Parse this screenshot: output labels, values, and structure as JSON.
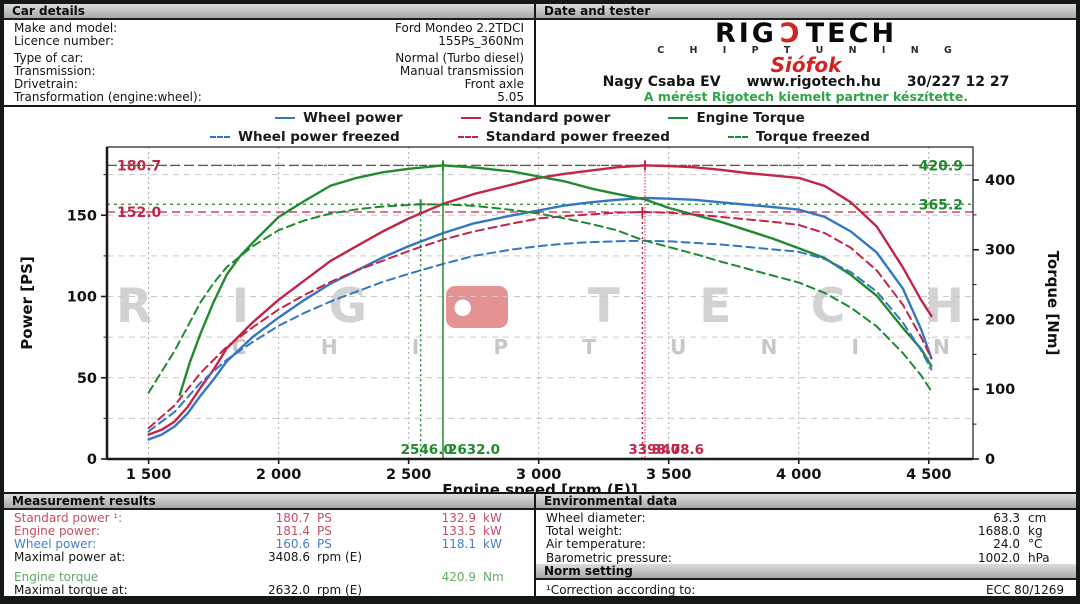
{
  "car_details": {
    "title": "Car details",
    "rows": [
      {
        "label": "Make and model:",
        "value": "Ford Mondeo 2.2TDCI"
      },
      {
        "label": "Licence number:",
        "value": "155Ps_360Nm"
      },
      {
        "label": "Type of car:",
        "value": "Normal (Turbo diesel)"
      },
      {
        "label": "Transmission:",
        "value": "Manual transmission"
      },
      {
        "label": "Drivetrain:",
        "value": "Front axle"
      },
      {
        "label": "Transformation (engine:wheel):",
        "value": "5.05"
      }
    ]
  },
  "date_tester": {
    "title": "Date and tester",
    "logo_pre": "RIG",
    "logo_glyph": "Ɔ",
    "logo_post": "TECH",
    "logo_sub": "C H I P T U N I N G",
    "city": "Siófok",
    "tester": "Nagy Csaba EV",
    "website": "www.rigotech.hu",
    "phone": "30/227 12 27",
    "note": "A mérést Rigotech kiemelt partner készítette."
  },
  "chart_data": {
    "type": "line",
    "xlabel": "Engine speed [rpm (E)]",
    "ylabel_left": "Power [PS]",
    "ylabel_right": "Torque [Nm]",
    "xlim": [
      1340,
      4670
    ],
    "ylim_power": [
      0,
      192
    ],
    "ylim_torque": [
      0,
      447.3
    ],
    "grid": true,
    "power_grid_step": 25,
    "x_ticks": [
      {
        "v": 1500,
        "label": "1 500"
      },
      {
        "v": 2000,
        "label": "2 000"
      },
      {
        "v": 2500,
        "label": "2 500"
      },
      {
        "v": 3000,
        "label": "3 000"
      },
      {
        "v": 3500,
        "label": "3 500"
      },
      {
        "v": 4000,
        "label": "4 000"
      },
      {
        "v": 4500,
        "label": "4 500"
      }
    ],
    "y_ticks_left": [
      0,
      50,
      100,
      150
    ],
    "y_minor_left_step": 25,
    "y_ticks_right": [
      0,
      100,
      200,
      300,
      400
    ],
    "y_minor_right_step": 50,
    "legend": [
      {
        "label": "Wheel power",
        "color": "#3377c2",
        "dashed": false
      },
      {
        "label": "Standard power",
        "color": "#c22547",
        "dashed": false
      },
      {
        "label": "Engine Torque",
        "color": "#1f8a2f",
        "dashed": false
      },
      {
        "label": "Wheel power freezed",
        "color": "#3377c2",
        "dashed": true
      },
      {
        "label": "Standard power freezed",
        "color": "#c22547",
        "dashed": true
      },
      {
        "label": "Torque freezed",
        "color": "#1f8a2f",
        "dashed": true
      }
    ],
    "series": [
      {
        "name": "Standard power",
        "axis": "power",
        "color": "#c22547",
        "dashed": false,
        "points": [
          [
            1500,
            15
          ],
          [
            1550,
            18
          ],
          [
            1600,
            23
          ],
          [
            1650,
            32
          ],
          [
            1700,
            44
          ],
          [
            1750,
            55
          ],
          [
            1800,
            68
          ],
          [
            1900,
            84
          ],
          [
            2000,
            98
          ],
          [
            2100,
            110
          ],
          [
            2200,
            122
          ],
          [
            2300,
            131
          ],
          [
            2400,
            140
          ],
          [
            2500,
            148
          ],
          [
            2632,
            157
          ],
          [
            2750,
            163
          ],
          [
            2900,
            169
          ],
          [
            3000,
            173
          ],
          [
            3100,
            175.5
          ],
          [
            3200,
            177.5
          ],
          [
            3300,
            179.5
          ],
          [
            3409,
            180.7
          ],
          [
            3500,
            180.3
          ],
          [
            3600,
            179.5
          ],
          [
            3700,
            178
          ],
          [
            3800,
            176
          ],
          [
            3900,
            174.5
          ],
          [
            4000,
            173
          ],
          [
            4100,
            168
          ],
          [
            4200,
            158
          ],
          [
            4300,
            143
          ],
          [
            4400,
            118
          ],
          [
            4470,
            98
          ],
          [
            4510,
            88
          ]
        ]
      },
      {
        "name": "Wheel power",
        "axis": "power",
        "color": "#3377c2",
        "dashed": false,
        "points": [
          [
            1500,
            12
          ],
          [
            1550,
            15
          ],
          [
            1600,
            20
          ],
          [
            1650,
            28
          ],
          [
            1700,
            39
          ],
          [
            1750,
            49
          ],
          [
            1800,
            60
          ],
          [
            1900,
            75
          ],
          [
            2000,
            87
          ],
          [
            2100,
            98
          ],
          [
            2200,
            108
          ],
          [
            2300,
            116
          ],
          [
            2400,
            124
          ],
          [
            2500,
            131
          ],
          [
            2632,
            139
          ],
          [
            2750,
            145
          ],
          [
            2900,
            150
          ],
          [
            3000,
            153
          ],
          [
            3100,
            156
          ],
          [
            3200,
            158
          ],
          [
            3300,
            159.5
          ],
          [
            3409,
            160.6
          ],
          [
            3500,
            160.2
          ],
          [
            3600,
            159.5
          ],
          [
            3700,
            158
          ],
          [
            3800,
            156.5
          ],
          [
            3900,
            155
          ],
          [
            4000,
            153.5
          ],
          [
            4100,
            149
          ],
          [
            4200,
            140
          ],
          [
            4300,
            127
          ],
          [
            4400,
            105
          ],
          [
            4470,
            80
          ],
          [
            4510,
            62
          ]
        ]
      },
      {
        "name": "Engine Torque",
        "axis": "torque",
        "color": "#1f8a2f",
        "dashed": false,
        "points": [
          [
            1620,
            92
          ],
          [
            1660,
            140
          ],
          [
            1700,
            180
          ],
          [
            1750,
            225
          ],
          [
            1800,
            264
          ],
          [
            1850,
            290
          ],
          [
            1900,
            310
          ],
          [
            2000,
            347
          ],
          [
            2100,
            370
          ],
          [
            2200,
            392
          ],
          [
            2300,
            403
          ],
          [
            2400,
            411
          ],
          [
            2500,
            416
          ],
          [
            2632,
            420.9
          ],
          [
            2750,
            418
          ],
          [
            2900,
            412
          ],
          [
            3000,
            405
          ],
          [
            3100,
            398
          ],
          [
            3200,
            388
          ],
          [
            3300,
            380
          ],
          [
            3409,
            372
          ],
          [
            3500,
            360
          ],
          [
            3600,
            350
          ],
          [
            3700,
            340
          ],
          [
            3800,
            328
          ],
          [
            3900,
            316
          ],
          [
            4000,
            302
          ],
          [
            4100,
            288
          ],
          [
            4200,
            264
          ],
          [
            4300,
            234
          ],
          [
            4400,
            188
          ],
          [
            4470,
            158
          ],
          [
            4510,
            133
          ]
        ]
      },
      {
        "name": "Standard power freezed",
        "axis": "power",
        "color": "#c22547",
        "dashed": true,
        "points": [
          [
            1500,
            19
          ],
          [
            1600,
            33
          ],
          [
            1700,
            53
          ],
          [
            1800,
            69
          ],
          [
            1900,
            81
          ],
          [
            2000,
            92
          ],
          [
            2100,
            101
          ],
          [
            2200,
            109
          ],
          [
            2300,
            116
          ],
          [
            2400,
            122
          ],
          [
            2500,
            128
          ],
          [
            2632,
            135
          ],
          [
            2750,
            140
          ],
          [
            2900,
            145
          ],
          [
            3000,
            148
          ],
          [
            3100,
            149.5
          ],
          [
            3200,
            150.5
          ],
          [
            3300,
            151.5
          ],
          [
            3399,
            152
          ],
          [
            3500,
            151.5
          ],
          [
            3600,
            150.5
          ],
          [
            3700,
            149
          ],
          [
            3800,
            147.5
          ],
          [
            3900,
            146
          ],
          [
            4000,
            144
          ],
          [
            4100,
            139
          ],
          [
            4200,
            130
          ],
          [
            4300,
            116
          ],
          [
            4400,
            95
          ],
          [
            4470,
            75
          ],
          [
            4510,
            62
          ]
        ]
      },
      {
        "name": "Wheel power freezed",
        "axis": "power",
        "color": "#3377c2",
        "dashed": true,
        "points": [
          [
            1500,
            17
          ],
          [
            1600,
            29
          ],
          [
            1700,
            47
          ],
          [
            1800,
            61
          ],
          [
            1900,
            72
          ],
          [
            2000,
            82
          ],
          [
            2100,
            90
          ],
          [
            2200,
            97
          ],
          [
            2300,
            103
          ],
          [
            2400,
            109
          ],
          [
            2500,
            114
          ],
          [
            2632,
            120
          ],
          [
            2750,
            125
          ],
          [
            2900,
            129
          ],
          [
            3000,
            131
          ],
          [
            3100,
            132.5
          ],
          [
            3200,
            133.5
          ],
          [
            3300,
            134
          ],
          [
            3400,
            134.3
          ],
          [
            3500,
            134
          ],
          [
            3600,
            133
          ],
          [
            3700,
            132
          ],
          [
            3800,
            130.5
          ],
          [
            3900,
            129
          ],
          [
            4000,
            127.5
          ],
          [
            4100,
            123
          ],
          [
            4200,
            115
          ],
          [
            4300,
            103
          ],
          [
            4400,
            84
          ],
          [
            4470,
            67
          ],
          [
            4510,
            55
          ]
        ]
      },
      {
        "name": "Torque freezed",
        "axis": "torque",
        "color": "#1f8a2f",
        "dashed": true,
        "points": [
          [
            1500,
            95
          ],
          [
            1550,
            125
          ],
          [
            1600,
            155
          ],
          [
            1650,
            190
          ],
          [
            1700,
            225
          ],
          [
            1750,
            252
          ],
          [
            1800,
            275
          ],
          [
            1900,
            305
          ],
          [
            2000,
            328
          ],
          [
            2100,
            342
          ],
          [
            2200,
            352
          ],
          [
            2300,
            358
          ],
          [
            2400,
            362
          ],
          [
            2546,
            365.2
          ],
          [
            2632,
            365
          ],
          [
            2750,
            363
          ],
          [
            2900,
            357
          ],
          [
            3000,
            352
          ],
          [
            3100,
            345
          ],
          [
            3200,
            337
          ],
          [
            3300,
            328
          ],
          [
            3399,
            314
          ],
          [
            3500,
            304
          ],
          [
            3600,
            294
          ],
          [
            3700,
            283
          ],
          [
            3800,
            273
          ],
          [
            3900,
            263
          ],
          [
            4000,
            253
          ],
          [
            4100,
            238
          ],
          [
            4200,
            217
          ],
          [
            4300,
            190
          ],
          [
            4400,
            152
          ],
          [
            4470,
            120
          ],
          [
            4510,
            97
          ]
        ]
      }
    ],
    "annotations": {
      "hlines": [
        {
          "axis": "power",
          "value": 180.7,
          "label": "180.7",
          "color": "#c22547",
          "side": "left",
          "dash": "8 5"
        },
        {
          "axis": "power",
          "value": 152.0,
          "label": "152.0",
          "color": "#c22547",
          "side": "left",
          "dash": "8 5"
        },
        {
          "axis": "torque",
          "value": 420.9,
          "label": "420.9",
          "color": "#1f8a2f",
          "side": "right",
          "dash": "3 4"
        },
        {
          "axis": "torque",
          "value": 365.2,
          "label": "365.2",
          "color": "#1f8a2f",
          "side": "right",
          "dash": "3 4"
        }
      ],
      "vlines": [
        {
          "rpm": 2546.0,
          "label": "2546.0",
          "color": "#1f8a2f",
          "dash": "2 3",
          "top_axis": "torque",
          "top_value": 365.2,
          "label_dx": -20
        },
        {
          "rpm": 2632.0,
          "label": "2632.0",
          "color": "#1f8a2f",
          "dash": "",
          "top_axis": "torque",
          "top_value": 420.9,
          "label_dx": 5
        },
        {
          "rpm": 3398.7,
          "label": "3398.7",
          "color": "#c22547",
          "dash": "2 3",
          "top_axis": "power",
          "top_value": 152.0,
          "label_dx": -14
        },
        {
          "rpm": 3408.6,
          "label": "3408.6",
          "color": "#c22547",
          "dash": "1 2",
          "top_axis": "power",
          "top_value": 180.7,
          "label_dx": 7
        }
      ]
    },
    "watermark": {
      "main_pre": [
        "R",
        "I",
        "G"
      ],
      "main_post": [
        "T",
        "E",
        "C",
        "H"
      ],
      "sub": [
        "C",
        "H",
        "I",
        "P",
        "T",
        "U",
        "N",
        "I",
        "N"
      ]
    }
  },
  "measurement": {
    "title": "Measurement results",
    "rows": [
      {
        "label": "Standard power ¹:",
        "v1": "180.7",
        "u1": "PS",
        "v2": "132.9",
        "u2": "kW"
      },
      {
        "label": "Engine power:",
        "v1": "181.4",
        "u1": "PS",
        "v2": "133.5",
        "u2": "kW"
      },
      {
        "label": "Wheel power:",
        "v1": "160.6",
        "u1": "PS",
        "v2": "118.1",
        "u2": "kW"
      },
      {
        "label": "Maximal power at:",
        "v1": "3408.6",
        "u1": "rpm (E)",
        "v2": "",
        "u2": ""
      },
      {
        "label": "Engine torque",
        "v1": "",
        "u1": "",
        "v2": "420.9",
        "u2": "Nm"
      },
      {
        "label": "Maximal torque at:",
        "v1": "2632.0",
        "u1": "rpm (E)",
        "v2": "",
        "u2": ""
      }
    ]
  },
  "environmental": {
    "title": "Environmental data",
    "rows": [
      {
        "label": "Wheel diameter:",
        "value": "63.3",
        "unit": "cm"
      },
      {
        "label": "Total weight:",
        "value": "1688.0",
        "unit": "kg"
      },
      {
        "label": "Air temperature:",
        "value": "24.0",
        "unit": "°C"
      },
      {
        "label": "Barometric pressure:",
        "value": "1002.0",
        "unit": "hPa"
      }
    ]
  },
  "norm": {
    "title": "Norm setting",
    "label": "¹Correction according to:",
    "value": "ECC 80/1269"
  }
}
